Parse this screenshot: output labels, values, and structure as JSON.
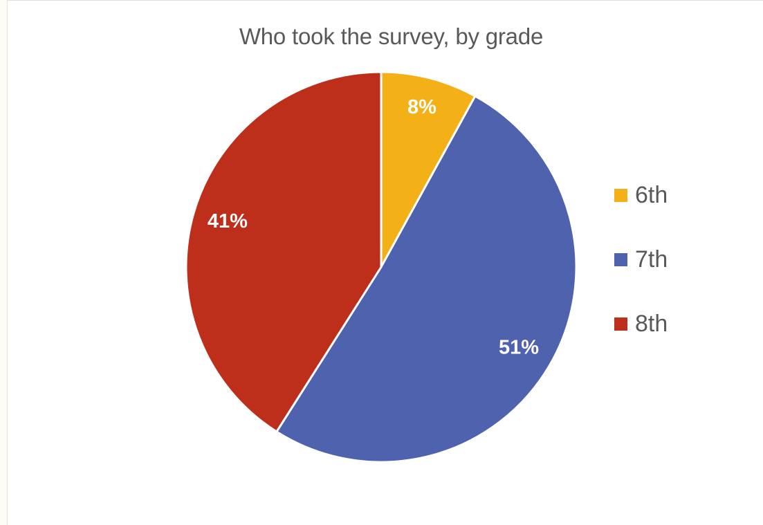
{
  "chart_data": {
    "type": "pie",
    "title": "Who took the survey, by grade",
    "categories": [
      "6th",
      "7th",
      "8th"
    ],
    "values": [
      8,
      51,
      41
    ],
    "data_labels": [
      "8%",
      "51%",
      "41%"
    ],
    "colors": [
      "#f4b017",
      "#4f62ad",
      "#be2f1b"
    ],
    "legend_position": "right"
  }
}
